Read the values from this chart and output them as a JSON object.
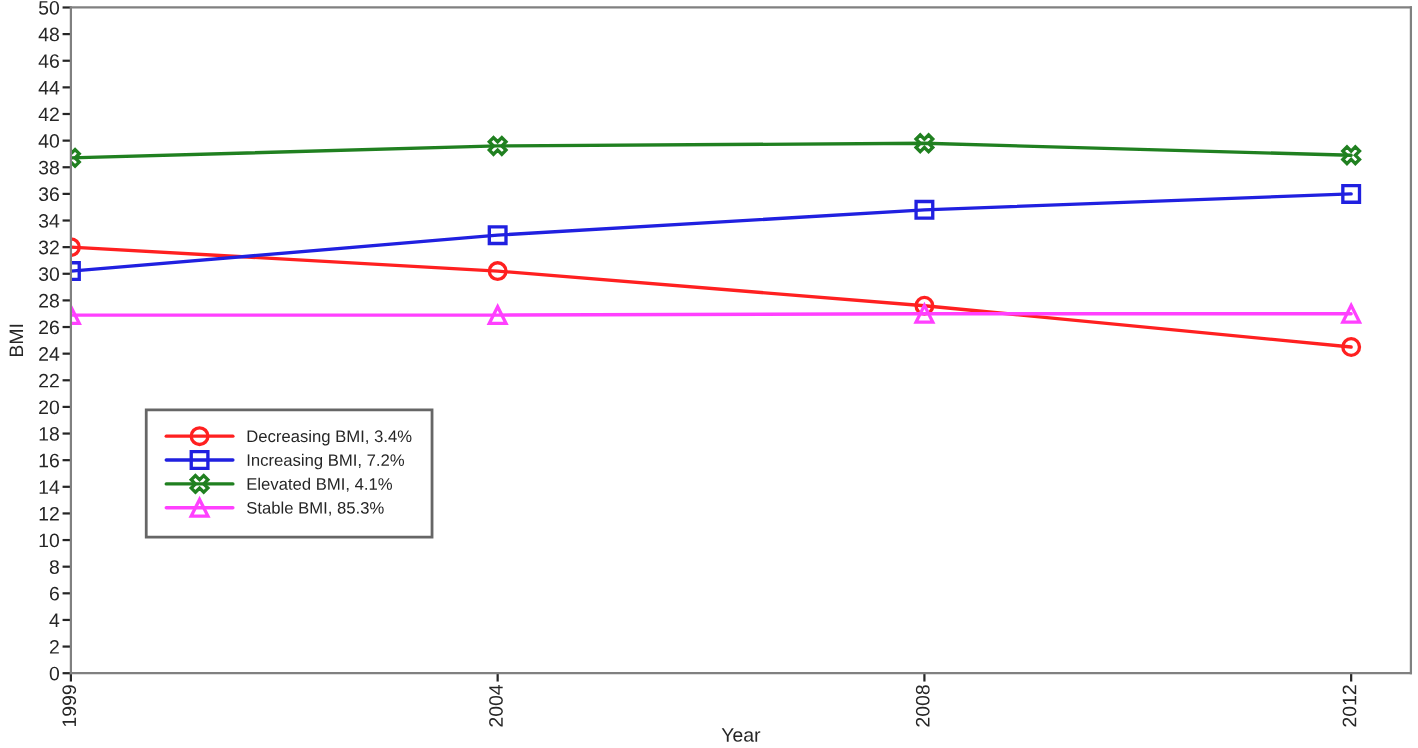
{
  "chart_data": {
    "type": "line",
    "xlabel": "Year",
    "ylabel": "BMI",
    "categories": [
      "1999",
      "2004",
      "2008",
      "2012"
    ],
    "series": [
      {
        "name": "Decreasing BMI, 3.4%",
        "color": "#ff2020",
        "marker": "circle",
        "values": [
          32.0,
          30.2,
          27.6,
          24.5
        ]
      },
      {
        "name": "Increasing BMI, 7.2%",
        "color": "#2020e0",
        "marker": "square",
        "values": [
          30.2,
          32.9,
          34.8,
          36.0
        ]
      },
      {
        "name": "Elevated BMI, 4.1%",
        "color": "#208020",
        "marker": "cross",
        "values": [
          38.7,
          39.6,
          39.8,
          38.9
        ]
      },
      {
        "name": "Stable BMI, 85.3%",
        "color": "#ff40ff",
        "marker": "triangle",
        "values": [
          26.9,
          26.9,
          27.0,
          27.0
        ]
      }
    ],
    "ylim": [
      0,
      50
    ],
    "yticks": [
      0,
      2,
      4,
      6,
      8,
      10,
      12,
      14,
      16,
      18,
      20,
      22,
      24,
      26,
      28,
      30,
      32,
      34,
      36,
      38,
      40,
      42,
      44,
      46,
      48,
      50
    ],
    "grid": false,
    "legend": "left",
    "line_style": "solid"
  }
}
